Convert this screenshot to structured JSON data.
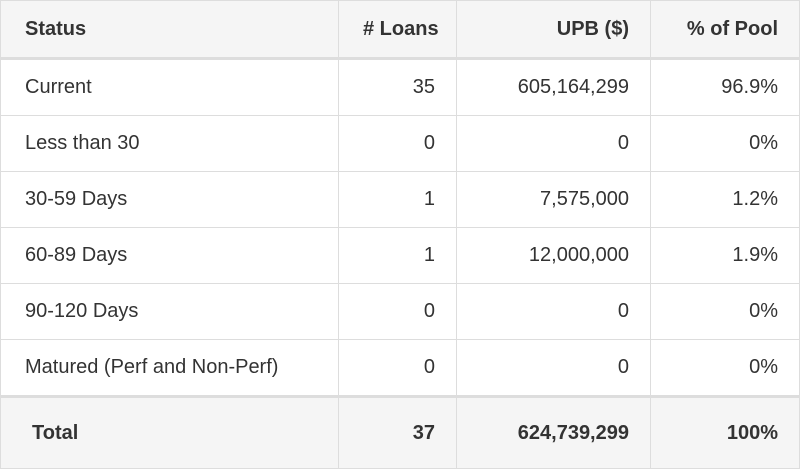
{
  "table": {
    "headers": {
      "status": "Status",
      "loans": "# Loans",
      "upb": "UPB ($)",
      "pct": "% of Pool"
    },
    "rows": [
      {
        "status": "Current",
        "loans": "35",
        "upb": "605,164,299",
        "pct": "96.9%"
      },
      {
        "status": "Less than 30",
        "loans": "0",
        "upb": "0",
        "pct": "0%"
      },
      {
        "status": "30-59 Days",
        "loans": "1",
        "upb": "7,575,000",
        "pct": "1.2%"
      },
      {
        "status": "60-89 Days",
        "loans": "1",
        "upb": "12,000,000",
        "pct": "1.9%"
      },
      {
        "status": "90-120 Days",
        "loans": "0",
        "upb": "0",
        "pct": "0%"
      },
      {
        "status": "Matured (Perf and Non-Perf)",
        "loans": "0",
        "upb": "0",
        "pct": "0%"
      }
    ],
    "total": {
      "status": "Total",
      "loans": "37",
      "upb": "624,739,299",
      "pct": "100%"
    }
  }
}
